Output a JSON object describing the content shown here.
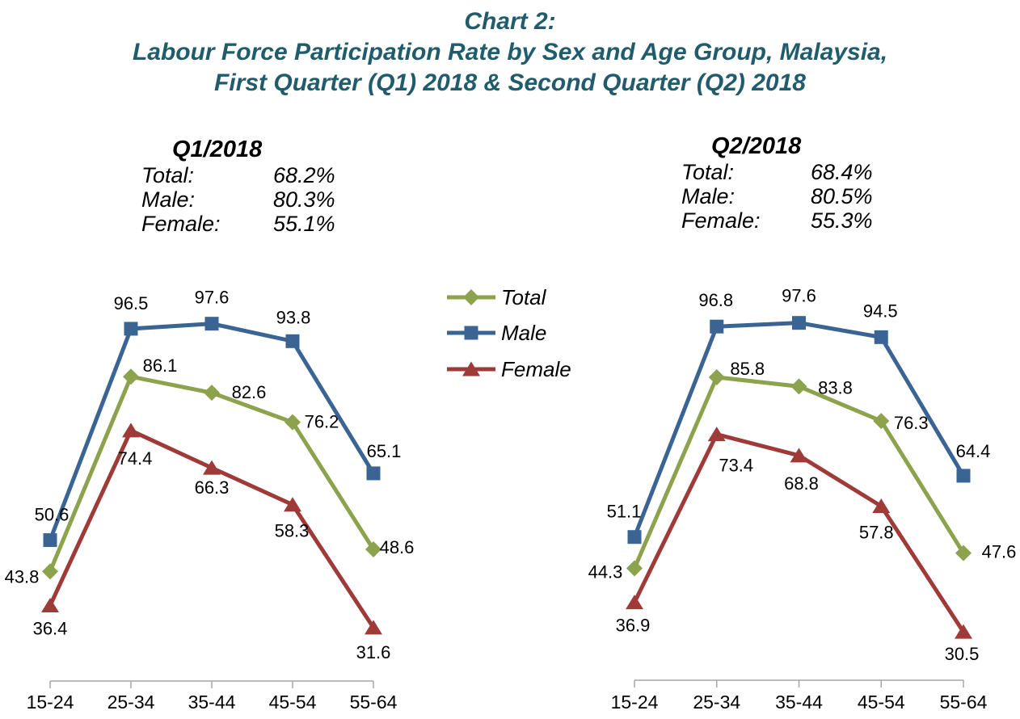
{
  "title": {
    "line1": "Chart 2:",
    "line2": "Labour Force Participation Rate by Sex and Age Group, Malaysia,",
    "line3": "First Quarter (Q1) 2018 & Second Quarter (Q2) 2018"
  },
  "colors": {
    "title_text": "#205C6B",
    "axis": "#A6A6A6",
    "data_label": "#000000",
    "total": "#8CA24D",
    "male": "#3A6493",
    "female": "#9E3B38"
  },
  "summaries": [
    {
      "heading": "Q1/2018",
      "rows": [
        {
          "label": "Total:",
          "value": "68.2%"
        },
        {
          "label": "Male:",
          "value": "80.3%"
        },
        {
          "label": "Female:",
          "value": "55.1%"
        }
      ]
    },
    {
      "heading": "Q2/2018",
      "rows": [
        {
          "label": "Total:",
          "value": "68.4%"
        },
        {
          "label": "Male:",
          "value": "80.5%"
        },
        {
          "label": "Female:",
          "value": "55.3%"
        }
      ]
    }
  ],
  "legend": {
    "position": "center-between-charts",
    "entries": [
      {
        "label": "Total",
        "marker": "diamond",
        "color": "#8CA24D"
      },
      {
        "label": "Male",
        "marker": "square",
        "color": "#3A6493"
      },
      {
        "label": "Female",
        "marker": "triangle",
        "color": "#9E3B38"
      }
    ]
  },
  "chart_data": [
    {
      "type": "line",
      "title": "Q1/2018",
      "categories": [
        "15-24",
        "25-34",
        "35-44",
        "45-54",
        "55-64"
      ],
      "series": [
        {
          "name": "Total",
          "marker": "diamond",
          "color": "#8CA24D",
          "values": [
            43.8,
            86.1,
            82.6,
            76.2,
            48.6
          ]
        },
        {
          "name": "Male",
          "marker": "square",
          "color": "#3A6493",
          "values": [
            50.6,
            96.5,
            97.6,
            93.8,
            65.1
          ]
        },
        {
          "name": "Female",
          "marker": "triangle",
          "color": "#9E3B38",
          "values": [
            36.4,
            74.4,
            66.3,
            58.3,
            31.6
          ]
        }
      ],
      "xlabel": "",
      "ylabel": "",
      "ylim": [
        20,
        105
      ],
      "grid": false,
      "y_axis_visible": false,
      "data_labels": true
    },
    {
      "type": "line",
      "title": "Q2/2018",
      "categories": [
        "15-24",
        "25-34",
        "35-44",
        "45-54",
        "55-64"
      ],
      "series": [
        {
          "name": "Total",
          "marker": "diamond",
          "color": "#8CA24D",
          "values": [
            44.3,
            85.8,
            83.8,
            76.3,
            47.6
          ]
        },
        {
          "name": "Male",
          "marker": "square",
          "color": "#3A6493",
          "values": [
            51.1,
            96.8,
            97.6,
            94.5,
            64.4
          ]
        },
        {
          "name": "Female",
          "marker": "triangle",
          "color": "#9E3B38",
          "values": [
            36.9,
            73.4,
            68.8,
            57.8,
            30.5
          ]
        }
      ],
      "xlabel": "",
      "ylabel": "",
      "ylim": [
        20,
        105
      ],
      "grid": false,
      "y_axis_visible": false,
      "data_labels": true
    }
  ]
}
